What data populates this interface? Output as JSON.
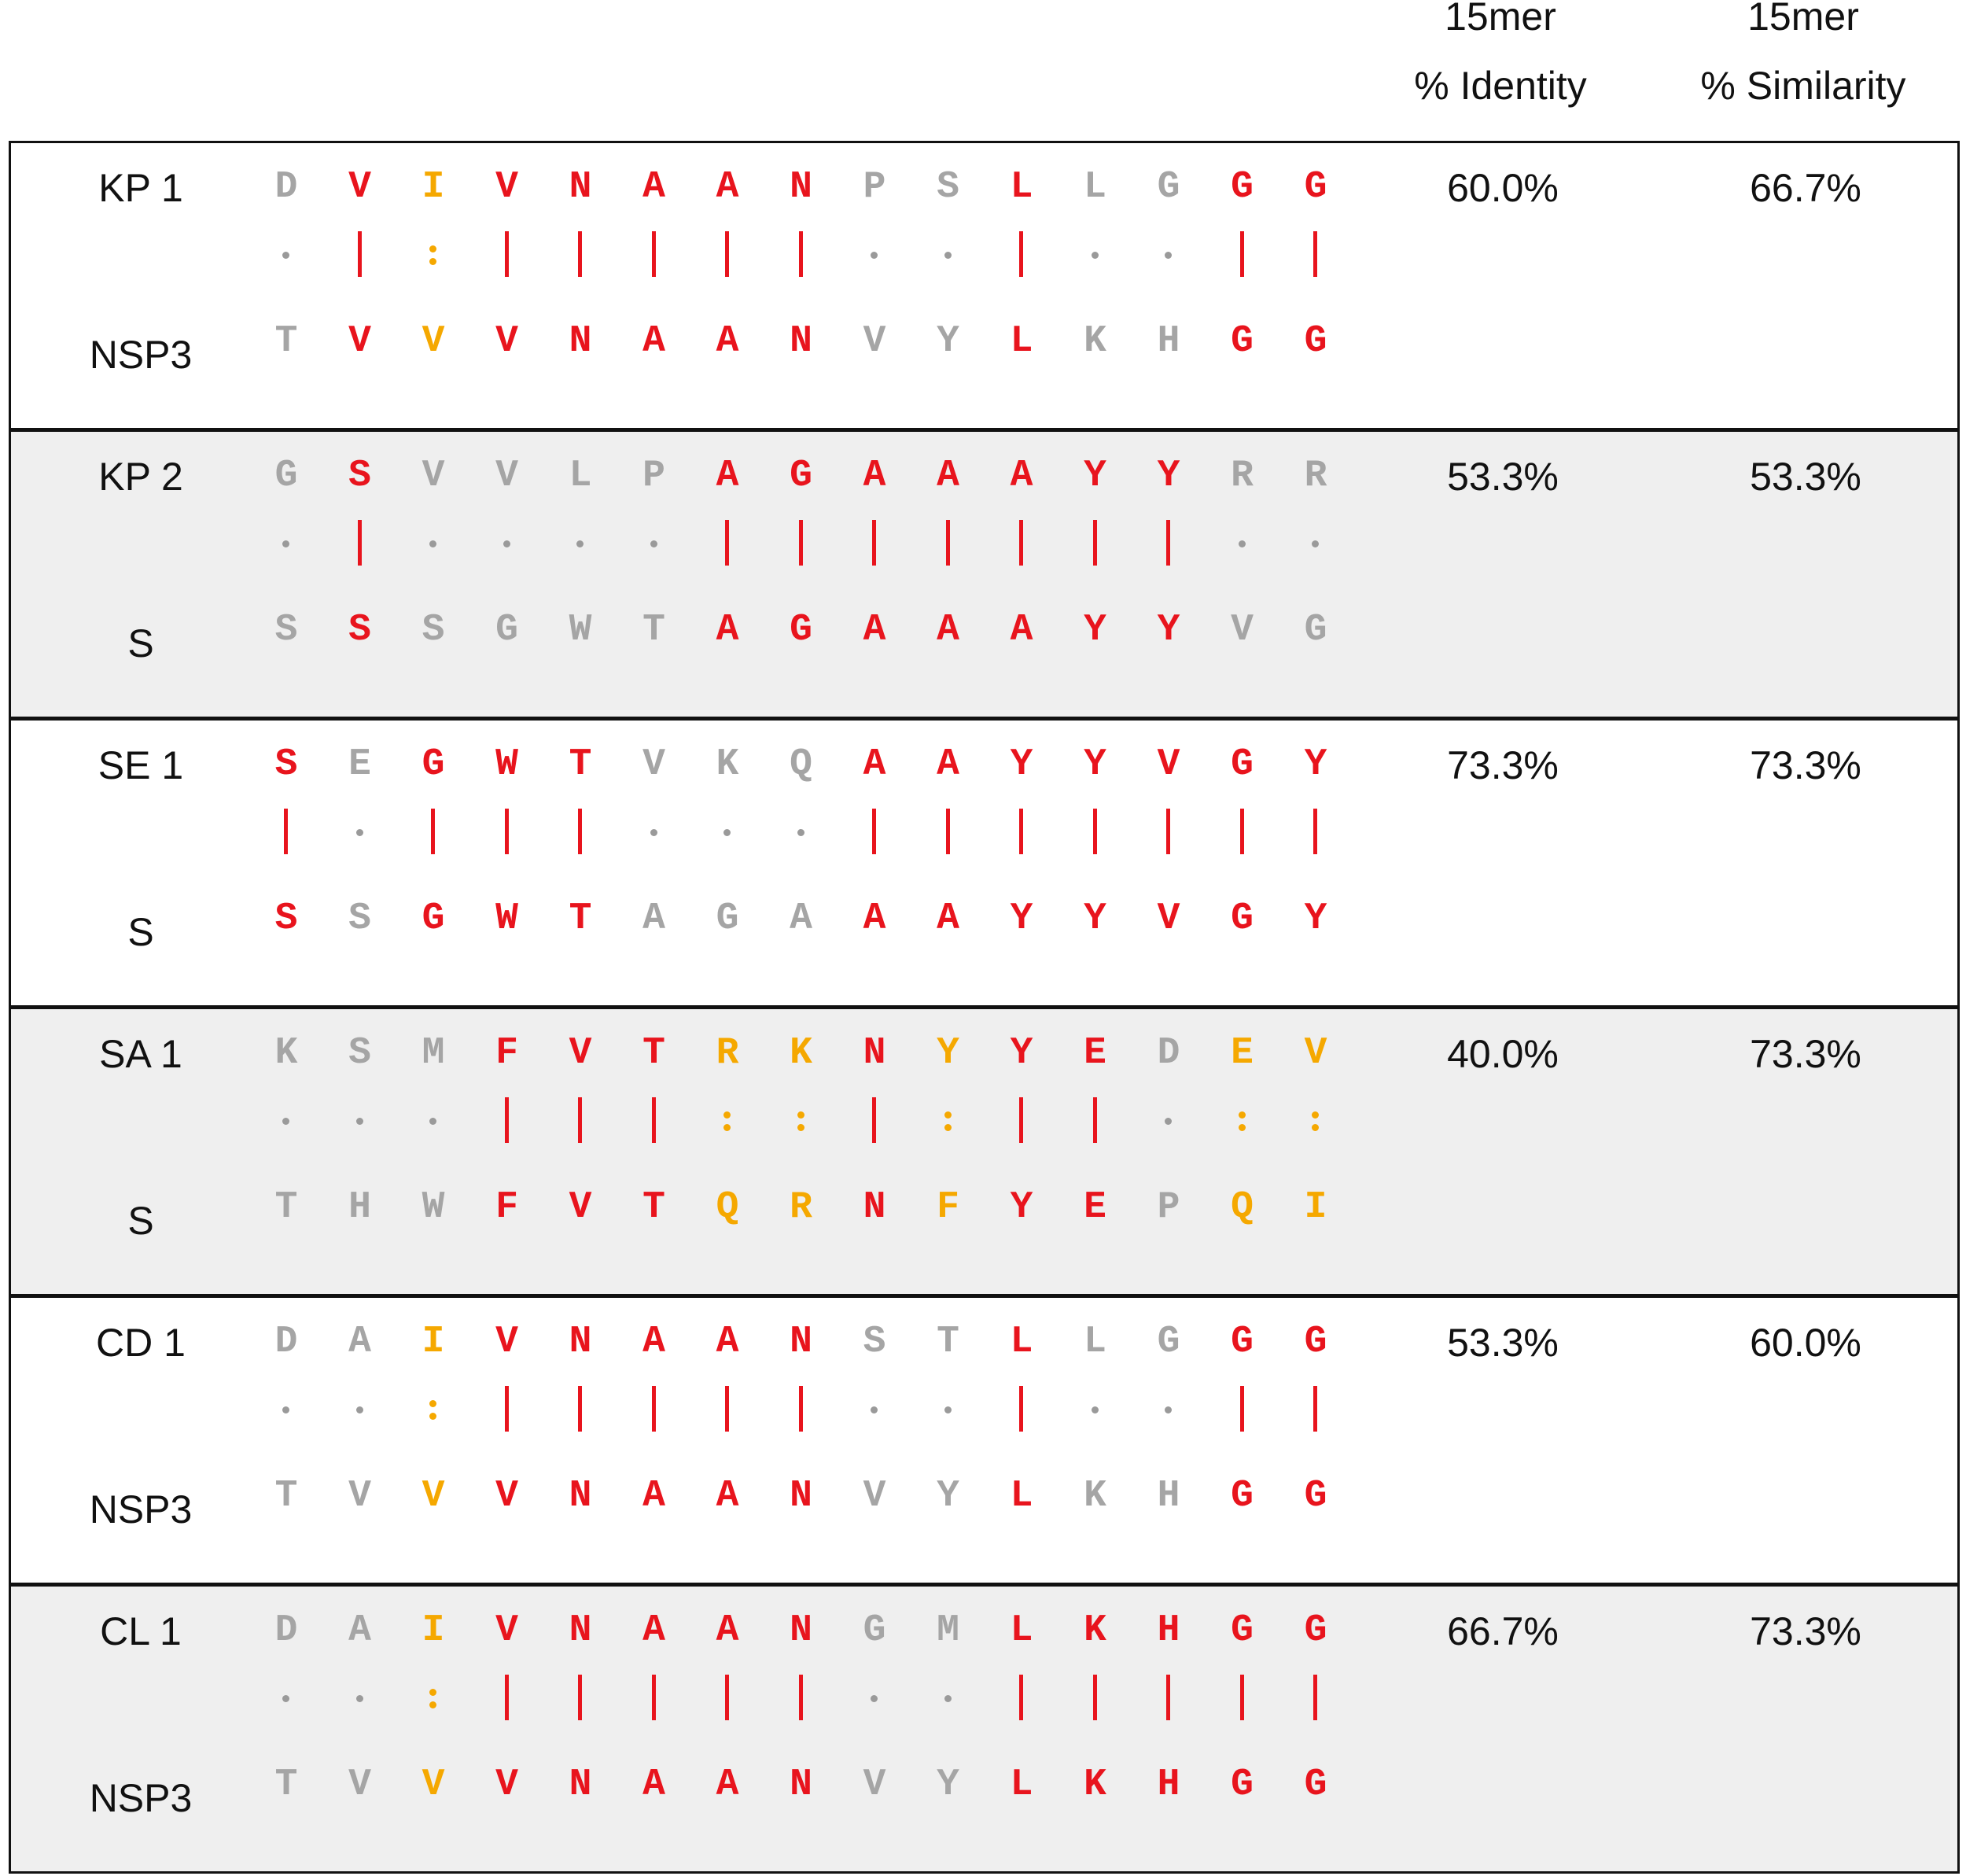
{
  "header": {
    "identity_line1": "15mer",
    "identity_line2": "% Identity",
    "similarity_line1": "15mer",
    "similarity_line2": "% Similarity"
  },
  "colors": {
    "identical": "#e8141d",
    "similar": "#f5a800",
    "different": "#a5a5a5",
    "border": "#111111",
    "alt_row_bg": "#efefef"
  },
  "rows": [
    {
      "label_top": "KP 1",
      "label_bottom": "NSP3",
      "top_seq": [
        "D",
        "V",
        "I",
        "V",
        "N",
        "A",
        "A",
        "N",
        "P",
        "S",
        "L",
        "L",
        "G",
        "G",
        "G"
      ],
      "bottom_seq": [
        "T",
        "V",
        "V",
        "V",
        "N",
        "A",
        "A",
        "N",
        "V",
        "Y",
        "L",
        "K",
        "H",
        "G",
        "G"
      ],
      "match": [
        ".",
        "|",
        ":",
        "|",
        "|",
        "|",
        "|",
        "|",
        ".",
        ".",
        "|",
        ".",
        ".",
        "|",
        "|"
      ],
      "identity": "60.0%",
      "similarity": "66.7%"
    },
    {
      "label_top": "KP 2",
      "label_bottom": "S",
      "top_seq": [
        "G",
        "S",
        "V",
        "V",
        "L",
        "P",
        "A",
        "G",
        "A",
        "A",
        "A",
        "Y",
        "Y",
        "R",
        "R"
      ],
      "bottom_seq": [
        "S",
        "S",
        "S",
        "G",
        "W",
        "T",
        "A",
        "G",
        "A",
        "A",
        "A",
        "Y",
        "Y",
        "V",
        "G"
      ],
      "match": [
        ".",
        "|",
        ".",
        ".",
        ".",
        ".",
        "|",
        "|",
        "|",
        "|",
        "|",
        "|",
        "|",
        ".",
        "."
      ],
      "identity": "53.3%",
      "similarity": "53.3%"
    },
    {
      "label_top": "SE 1",
      "label_bottom": "S",
      "top_seq": [
        "S",
        "E",
        "G",
        "W",
        "T",
        "V",
        "K",
        "Q",
        "A",
        "A",
        "Y",
        "Y",
        "V",
        "G",
        "Y"
      ],
      "bottom_seq": [
        "S",
        "S",
        "G",
        "W",
        "T",
        "A",
        "G",
        "A",
        "A",
        "A",
        "Y",
        "Y",
        "V",
        "G",
        "Y"
      ],
      "match": [
        "|",
        ".",
        "|",
        "|",
        "|",
        ".",
        ".",
        ".",
        "|",
        "|",
        "|",
        "|",
        "|",
        "|",
        "|"
      ],
      "identity": "73.3%",
      "similarity": "73.3%"
    },
    {
      "label_top": "SA 1",
      "label_bottom": "S",
      "top_seq": [
        "K",
        "S",
        "M",
        "F",
        "V",
        "T",
        "R",
        "K",
        "N",
        "Y",
        "Y",
        "E",
        "D",
        "E",
        "V"
      ],
      "bottom_seq": [
        "T",
        "H",
        "W",
        "F",
        "V",
        "T",
        "Q",
        "R",
        "N",
        "F",
        "Y",
        "E",
        "P",
        "Q",
        "I"
      ],
      "match": [
        ".",
        ".",
        ".",
        "|",
        "|",
        "|",
        ":",
        ":",
        "|",
        ":",
        "|",
        "|",
        ".",
        ":",
        ":"
      ],
      "identity": "40.0%",
      "similarity": "73.3%"
    },
    {
      "label_top": "CD 1",
      "label_bottom": "NSP3",
      "top_seq": [
        "D",
        "A",
        "I",
        "V",
        "N",
        "A",
        "A",
        "N",
        "S",
        "T",
        "L",
        "L",
        "G",
        "G",
        "G"
      ],
      "bottom_seq": [
        "T",
        "V",
        "V",
        "V",
        "N",
        "A",
        "A",
        "N",
        "V",
        "Y",
        "L",
        "K",
        "H",
        "G",
        "G"
      ],
      "match": [
        ".",
        ".",
        ":",
        "|",
        "|",
        "|",
        "|",
        "|",
        ".",
        ".",
        "|",
        ".",
        ".",
        "|",
        "|"
      ],
      "identity": "53.3%",
      "similarity": "60.0%"
    },
    {
      "label_top": "CL 1",
      "label_bottom": "NSP3",
      "top_seq": [
        "D",
        "A",
        "I",
        "V",
        "N",
        "A",
        "A",
        "N",
        "G",
        "M",
        "L",
        "K",
        "H",
        "G",
        "G"
      ],
      "bottom_seq": [
        "T",
        "V",
        "V",
        "V",
        "N",
        "A",
        "A",
        "N",
        "V",
        "Y",
        "L",
        "K",
        "H",
        "G",
        "G"
      ],
      "match": [
        ".",
        ".",
        ":",
        "|",
        "|",
        "|",
        "|",
        "|",
        ".",
        ".",
        "|",
        "|",
        "|",
        "|",
        "|"
      ],
      "identity": "66.7%",
      "similarity": "73.3%"
    }
  ]
}
